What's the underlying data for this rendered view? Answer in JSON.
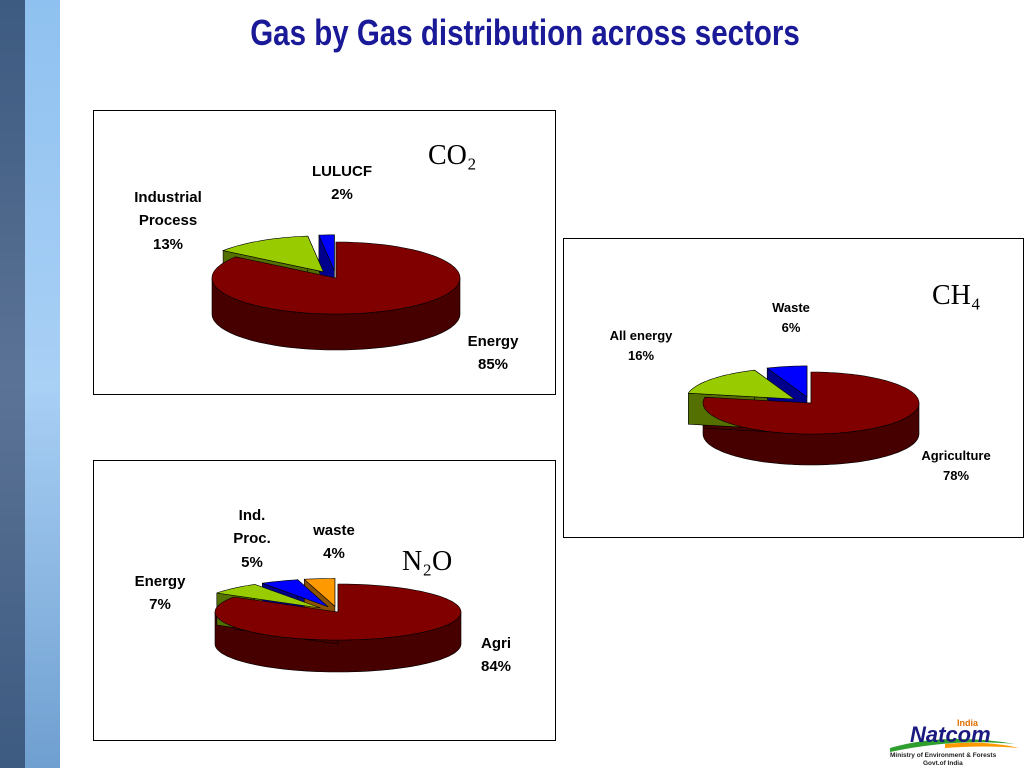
{
  "slide": {
    "title": "Gas by Gas distribution across sectors",
    "logo": {
      "brand": "Natcom",
      "country": "India",
      "ministry": "Ministry of Environment & Forests",
      "govt": "Govt.of India"
    }
  },
  "chart_data": [
    {
      "type": "pie",
      "title": "CO₂",
      "categories": [
        "Energy",
        "Industrial Process",
        "LULUCF"
      ],
      "values": [
        85,
        13,
        2
      ],
      "value_labels": [
        "85%",
        "13%",
        "2%"
      ],
      "colors": [
        "#800000",
        "#99cc00",
        "#0000ff"
      ]
    },
    {
      "type": "pie",
      "title": "CH₄",
      "categories": [
        "Agriculture",
        "All energy",
        "Waste"
      ],
      "values": [
        78,
        16,
        6
      ],
      "value_labels": [
        "78%",
        "16%",
        "6%"
      ],
      "colors": [
        "#800000",
        "#99cc00",
        "#0000ff"
      ]
    },
    {
      "type": "pie",
      "title": "N₂O",
      "categories": [
        "Agri",
        "Energy",
        "Ind. Proc.",
        "waste"
      ],
      "values": [
        84,
        7,
        5,
        4
      ],
      "value_labels": [
        "84%",
        "7%",
        "5%",
        "4%"
      ],
      "colors": [
        "#800000",
        "#99cc00",
        "#0000ff",
        "#ff9900"
      ]
    }
  ]
}
